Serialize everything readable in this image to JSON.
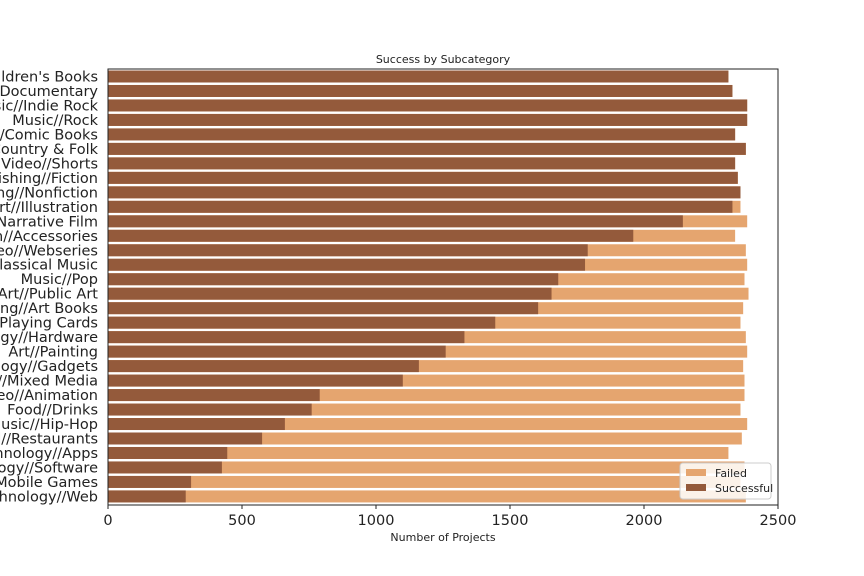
{
  "chart_data": {
    "type": "bar",
    "orientation": "horizontal",
    "stacking": "overlay",
    "title": "Success by Subcategory",
    "xlabel": "Number of Projects",
    "ylabel": "",
    "xlim": [
      0,
      2500
    ],
    "xticks": [
      0,
      500,
      1000,
      1500,
      2000,
      2500
    ],
    "grid": false,
    "legend_position": "lower-right",
    "categories": [
      "Children's Books",
      "Film & Video//Documentary",
      "Music//Indie Rock",
      "Music//Rock",
      "Comics//Comic Books",
      "Music//Country & Folk",
      "Film & Video//Shorts",
      "Publishing//Fiction",
      "Publishing//Nonfiction",
      "Art//Illustration",
      "Film & Video//Narrative Film",
      "Fashion//Accessories",
      "Film & Video//Webseries",
      "Music//Classical Music",
      "Music//Pop",
      "Art//Public Art",
      "Publishing//Art Books",
      "Games//Playing Cards",
      "Technology//Hardware",
      "Art//Painting",
      "Technology//Gadgets",
      "Art//Mixed Media",
      "Film & Video//Animation",
      "Food//Drinks",
      "Music//Hip-Hop",
      "Food//Restaurants",
      "Technology//Apps",
      "Technology//Software",
      "Games//Mobile Games",
      "Technology//Web"
    ],
    "series": [
      {
        "name": "Failed",
        "color": "#e5a56f",
        "values": [
          2315,
          2330,
          2385,
          2385,
          2340,
          2380,
          2340,
          2350,
          2360,
          2360,
          2385,
          2340,
          2380,
          2385,
          2375,
          2390,
          2370,
          2360,
          2380,
          2385,
          2370,
          2375,
          2375,
          2360,
          2385,
          2365,
          2315,
          2375,
          2360,
          2380
        ]
      },
      {
        "name": "Successful",
        "color": "#945a3b",
        "values": [
          2315,
          2330,
          2385,
          2385,
          2340,
          2380,
          2340,
          2350,
          2360,
          2330,
          2145,
          1960,
          1790,
          1780,
          1680,
          1655,
          1605,
          1445,
          1330,
          1260,
          1160,
          1100,
          790,
          760,
          660,
          575,
          445,
          425,
          310,
          290
        ]
      }
    ]
  }
}
